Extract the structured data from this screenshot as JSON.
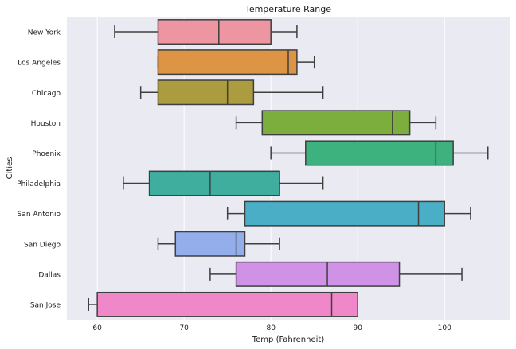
{
  "chart_data": {
    "type": "boxplot",
    "orientation": "horizontal",
    "title": "Temperature Range",
    "xlabel": "Temp (Fahrenheit)",
    "ylabel": "Cities",
    "xlim": [
      56.5,
      107.5
    ],
    "xticks": [
      60,
      70,
      80,
      90,
      100
    ],
    "grid": true,
    "categories": [
      "New York",
      "Los Angeles",
      "Chicago",
      "Houston",
      "Phoenix",
      "Philadelphia",
      "San Antonio",
      "San Diego",
      "Dallas",
      "San Jose"
    ],
    "colors": [
      "#ED95A0",
      "#DD9445",
      "#AB9C3F",
      "#7BAE3D",
      "#3DB17E",
      "#3FAE9E",
      "#4AAEC7",
      "#93AEEB",
      "#D092E6",
      "#EF87C8"
    ],
    "boxes": [
      {
        "min": 62,
        "q1": 67,
        "median": 74,
        "q3": 80,
        "max": 83
      },
      {
        "min": 67,
        "q1": 67,
        "median": 82,
        "q3": 83,
        "max": 85
      },
      {
        "min": 65,
        "q1": 67,
        "median": 75,
        "q3": 78,
        "max": 86
      },
      {
        "min": 76,
        "q1": 79,
        "median": 94,
        "q3": 96,
        "max": 99
      },
      {
        "min": 80,
        "q1": 84,
        "median": 99,
        "q3": 101,
        "max": 105
      },
      {
        "min": 63,
        "q1": 66,
        "median": 73,
        "q3": 81,
        "max": 86
      },
      {
        "min": 75,
        "q1": 77,
        "median": 97,
        "q3": 100,
        "max": 103
      },
      {
        "min": 67,
        "q1": 69,
        "median": 76,
        "q3": 77,
        "max": 81
      },
      {
        "min": 73,
        "q1": 76,
        "median": 86.5,
        "q3": 94.8,
        "max": 102
      },
      {
        "min": 59,
        "q1": 60,
        "median": 87,
        "q3": 90,
        "max": 90
      }
    ]
  }
}
